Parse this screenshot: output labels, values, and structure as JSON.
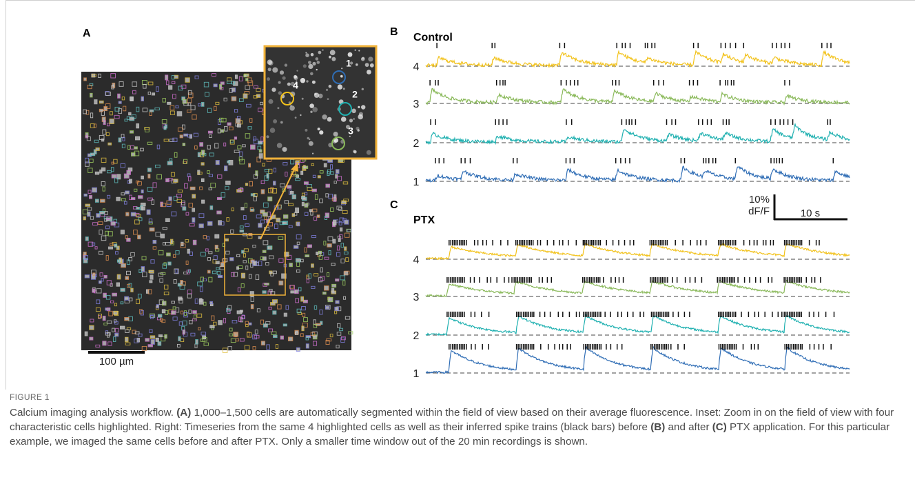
{
  "panels": {
    "a": {
      "label": "A",
      "scale_bar": "100 µm",
      "inset_cells": [
        "1",
        "2",
        "3",
        "4"
      ]
    },
    "b": {
      "label": "B",
      "title": "Control",
      "rows": [
        "4",
        "3",
        "2",
        "1"
      ]
    },
    "c": {
      "label": "C",
      "title": "PTX",
      "rows": [
        "4",
        "3",
        "2",
        "1"
      ]
    },
    "scale": {
      "y": "10%",
      "y_unit": "dF/F",
      "x": "10 s"
    }
  },
  "caption": {
    "label": "FIGURE 1",
    "segments": [
      "Calcium imaging analysis workflow. ",
      "(A)",
      " 1,000–1,500 cells are automatically segmented within the field of view based on their average fluorescence. Inset: Zoom in on the field of view with four characteristic cells highlighted. Right: Timeseries from the same 4 highlighted cells as well as their inferred spike trains (black bars) before ",
      "(B)",
      " and after ",
      "(C)",
      " PTX application. For this particular example, we imaged the same cells before and after PTX. Only a smaller time window out of the 20 min recordings is shown."
    ]
  }
}
